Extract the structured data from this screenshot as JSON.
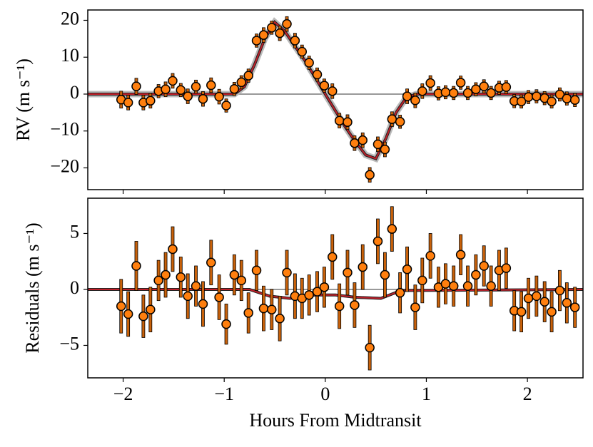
{
  "chart_data": [
    {
      "type": "scatter",
      "ylabel": "RV (m s⁻¹)",
      "xlim": [
        -2.35,
        2.55
      ],
      "ylim": [
        -25.9,
        22.8
      ],
      "xticks": [
        -2,
        -1,
        0,
        1,
        2
      ],
      "yticks": [
        {
          "value": -20,
          "label": "−20"
        },
        {
          "value": -10,
          "label": "−10"
        },
        0,
        10,
        20
      ],
      "x": [
        -2.02,
        -1.95,
        -1.87,
        -1.8,
        -1.73,
        -1.65,
        -1.58,
        -1.51,
        -1.43,
        -1.36,
        -1.28,
        -1.21,
        -1.13,
        -1.05,
        -0.98,
        -0.9,
        -0.83,
        -0.76,
        -0.68,
        -0.61,
        -0.53,
        -0.45,
        -0.38,
        -0.3,
        -0.23,
        -0.16,
        -0.08,
        -0.01,
        0.07,
        0.14,
        0.22,
        0.29,
        0.37,
        0.44,
        0.52,
        0.59,
        0.66,
        0.74,
        0.81,
        0.89,
        0.96,
        1.04,
        1.12,
        1.19,
        1.27,
        1.34,
        1.41,
        1.49,
        1.57,
        1.64,
        1.72,
        1.79,
        1.87,
        1.94,
        2.01,
        2.09,
        2.17,
        2.24,
        2.32,
        2.39,
        2.47
      ],
      "series": [
        {
          "color": "#ff7f0e",
          "values": [
            -1.5,
            -2.3,
            2.1,
            -2.3,
            -1.8,
            0.8,
            1.3,
            3.6,
            1.1,
            -0.6,
            2.0,
            -1.3,
            2.4,
            -0.7,
            -3.1,
            1.4,
            3.2,
            5.0,
            14.5,
            16.0,
            18.0,
            16.5,
            19.0,
            14.5,
            11.5,
            8.5,
            5.3,
            2.3,
            0.8,
            -7.2,
            -7.6,
            -13.3,
            -12.5,
            -21.9,
            -13.6,
            -15.0,
            -6.8,
            -7.5,
            -0.6,
            -1.7,
            0.8,
            3.0,
            0.2,
            0.5,
            0.3,
            3.1,
            0.3,
            1.3,
            2.1,
            0.3,
            1.7,
            1.9,
            -1.9,
            -2.0,
            -0.8,
            -0.6,
            -1.1,
            -2.0,
            -0.1,
            -1.2,
            -1.6
          ],
          "errors": [
            2.3,
            2.0,
            2.2,
            2.0,
            2.0,
            1.8,
            2.0,
            2.0,
            1.8,
            2.0,
            1.8,
            2.0,
            2.0,
            2.0,
            1.8,
            1.8,
            1.8,
            1.8,
            1.8,
            2.0,
            1.8,
            2.0,
            2.0,
            2.0,
            1.8,
            1.8,
            1.8,
            1.8,
            2.0,
            2.0,
            2.0,
            2.0,
            2.0,
            2.0,
            2.0,
            2.0,
            2.0,
            1.8,
            2.0,
            2.0,
            2.0,
            2.0,
            1.8,
            1.8,
            1.8,
            1.8,
            1.8,
            1.8,
            1.8,
            1.8,
            1.8,
            1.8,
            1.8,
            1.8,
            1.8,
            1.8,
            1.8,
            1.8,
            1.8,
            1.8,
            1.8
          ]
        }
      ],
      "model": {
        "color": "#c0202a",
        "x": [
          -2.35,
          -0.9,
          -0.8,
          -0.7,
          -0.6,
          -0.5,
          -0.4,
          -0.3,
          -0.2,
          -0.1,
          0,
          0.1,
          0.2,
          0.3,
          0.4,
          0.5,
          0.6,
          0.7,
          0.8,
          0.9,
          2.55
        ],
        "values": [
          0,
          0,
          2,
          8,
          15,
          19.5,
          17,
          13,
          9,
          4.5,
          0,
          -4.5,
          -9,
          -13,
          -16.5,
          -17.5,
          -12,
          -5,
          -1,
          0,
          0
        ]
      }
    },
    {
      "type": "scatter",
      "ylabel": "Residuals (m s⁻¹)",
      "xlabel": "Hours From Midtransit",
      "xlim": [
        -2.35,
        2.55
      ],
      "ylim": [
        -7.9,
        8.15
      ],
      "xticks": [
        {
          "value": -2,
          "label": "−2"
        },
        {
          "value": -1,
          "label": "−1"
        },
        0,
        1,
        2
      ],
      "yticks": [
        {
          "value": -5,
          "label": "−5"
        },
        0,
        5
      ],
      "x": [
        -2.02,
        -1.95,
        -1.87,
        -1.8,
        -1.73,
        -1.65,
        -1.58,
        -1.51,
        -1.43,
        -1.36,
        -1.28,
        -1.21,
        -1.13,
        -1.05,
        -0.98,
        -0.9,
        -0.83,
        -0.76,
        -0.68,
        -0.61,
        -0.53,
        -0.45,
        -0.38,
        -0.3,
        -0.23,
        -0.16,
        -0.08,
        -0.01,
        0.07,
        0.14,
        0.22,
        0.29,
        0.37,
        0.44,
        0.52,
        0.59,
        0.66,
        0.74,
        0.81,
        0.89,
        0.96,
        1.04,
        1.12,
        1.19,
        1.27,
        1.34,
        1.41,
        1.49,
        1.57,
        1.64,
        1.72,
        1.79,
        1.87,
        1.94,
        2.01,
        2.09,
        2.17,
        2.24,
        2.32,
        2.39,
        2.47
      ],
      "series": [
        {
          "color": "#ff7f0e",
          "values": [
            -1.5,
            -2.2,
            2.1,
            -2.4,
            -1.8,
            0.8,
            1.3,
            3.6,
            1.1,
            -0.6,
            0.3,
            -1.3,
            2.4,
            -0.7,
            -3.1,
            1.3,
            0.8,
            -2.1,
            1.7,
            -1.7,
            -1.8,
            -2.6,
            1.5,
            -0.6,
            -0.8,
            -0.5,
            -0.2,
            0.2,
            2.9,
            -1.5,
            1.5,
            -1.4,
            2.0,
            -5.2,
            4.3,
            1.3,
            5.4,
            -0.3,
            1.8,
            -1.6,
            0.8,
            3.0,
            0.2,
            0.5,
            0.3,
            3.1,
            0.3,
            1.3,
            2.1,
            0.3,
            1.7,
            1.9,
            -1.9,
            -2.0,
            -0.8,
            -0.6,
            -1.1,
            -2.0,
            -0.1,
            -1.2,
            -1.6
          ],
          "errors": [
            2.4,
            2.0,
            2.2,
            1.9,
            2.0,
            1.8,
            2.0,
            2.0,
            1.8,
            2.0,
            1.8,
            2.0,
            2.0,
            2.0,
            1.8,
            1.8,
            1.8,
            1.8,
            1.8,
            2.0,
            1.8,
            2.0,
            2.0,
            2.0,
            1.8,
            1.8,
            1.8,
            1.8,
            2.0,
            2.0,
            2.0,
            2.0,
            2.0,
            2.0,
            2.0,
            2.0,
            2.0,
            1.8,
            2.0,
            2.0,
            2.0,
            2.0,
            1.8,
            1.8,
            1.8,
            1.8,
            1.8,
            1.8,
            1.8,
            1.8,
            1.8,
            1.8,
            1.8,
            1.8,
            1.8,
            1.8,
            1.8,
            1.8,
            1.8,
            1.8,
            1.8
          ]
        }
      ],
      "model": {
        "color": "#c0202a",
        "x": [
          -2.35,
          -0.75,
          -0.55,
          -0.35,
          -0.1,
          0.1,
          0.3,
          0.55,
          0.75,
          2.55
        ],
        "values": [
          0,
          0,
          -0.6,
          -0.8,
          -0.5,
          -0.5,
          -0.7,
          -0.8,
          -0.1,
          0
        ]
      }
    }
  ]
}
